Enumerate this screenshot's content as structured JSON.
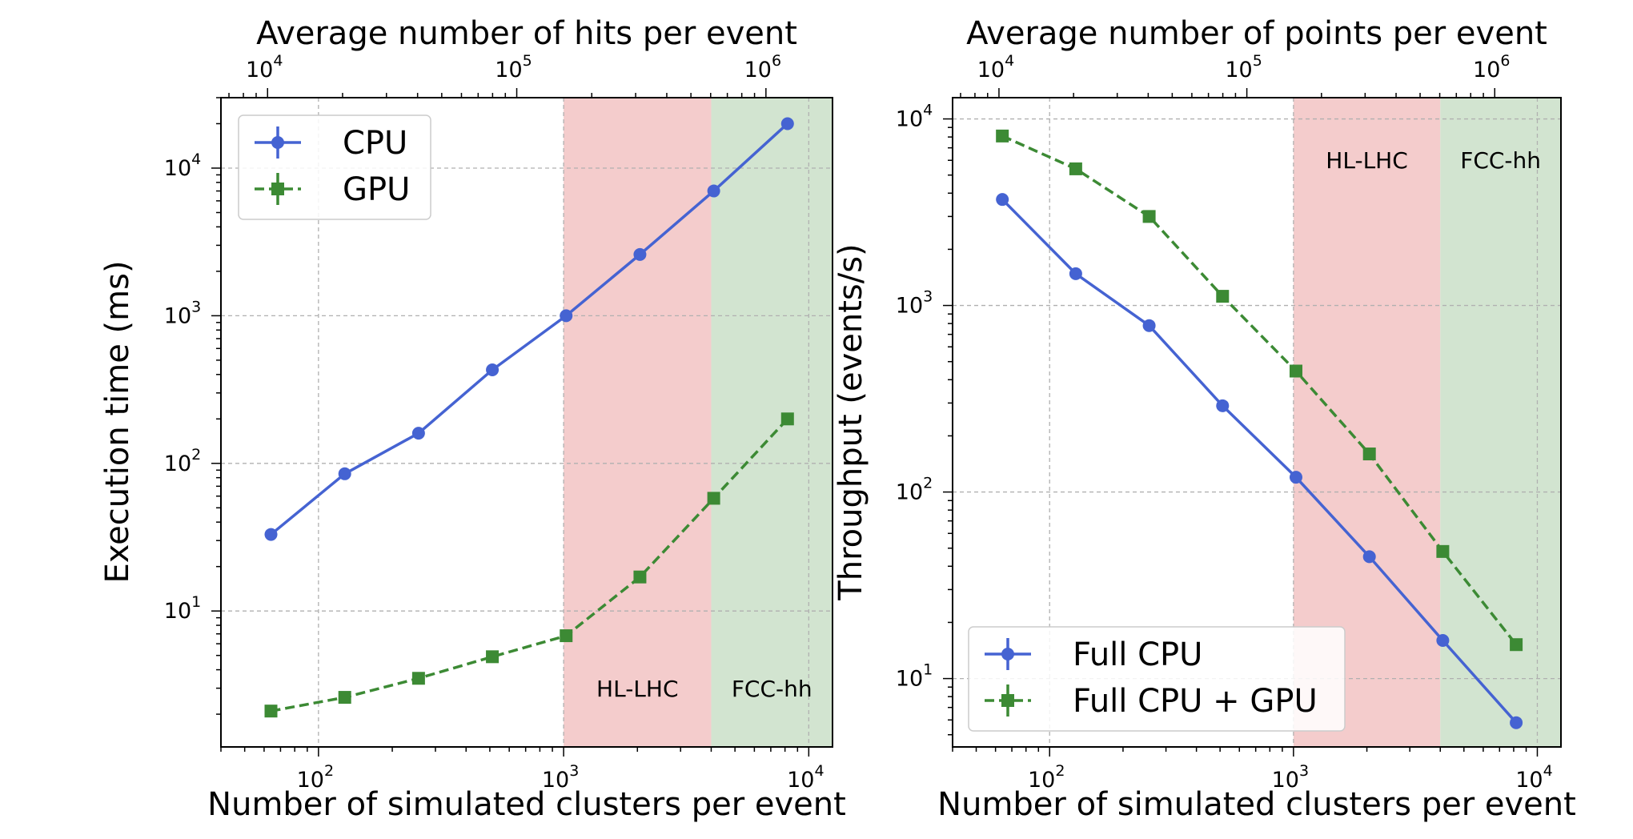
{
  "chart_data": [
    {
      "type": "line",
      "id": "left",
      "xlabel": "Number of simulated clusters per event",
      "ylabel": "Execution time (ms)",
      "top_xlabel": "Average number of hits per event",
      "xscale": "log",
      "yscale": "log",
      "xlim": [
        40,
        12500
      ],
      "ylim": [
        1.2,
        30000
      ],
      "top_xlim": [
        6500,
        1850000
      ],
      "x_ticks": [
        {
          "base": "10",
          "exp": "2",
          "value": 100
        },
        {
          "base": "10",
          "exp": "3",
          "value": 1000
        },
        {
          "base": "10",
          "exp": "4",
          "value": 10000
        }
      ],
      "y_ticks": [
        {
          "base": "10",
          "exp": "1",
          "value": 10
        },
        {
          "base": "10",
          "exp": "2",
          "value": 100
        },
        {
          "base": "10",
          "exp": "3",
          "value": 1000
        },
        {
          "base": "10",
          "exp": "4",
          "value": 10000
        }
      ],
      "top_ticks": [
        {
          "base": "10",
          "exp": "4",
          "value": 10000
        },
        {
          "base": "10",
          "exp": "5",
          "value": 100000
        },
        {
          "base": "10",
          "exp": "6",
          "value": 1000000
        }
      ],
      "grid": true,
      "legend_position": "top-left",
      "regions": [
        {
          "label": "HL-LHC",
          "from": 1000,
          "to": 4000,
          "color": "#f4cccc"
        },
        {
          "label": "FCC-hh",
          "from": 4000,
          "to": 12500,
          "color": "#d2e4d0"
        }
      ],
      "x": [
        64,
        128,
        256,
        512,
        1024,
        2048,
        4096,
        8192
      ],
      "series": [
        {
          "name": "CPU",
          "values": [
            33,
            85,
            160,
            430,
            1000,
            2600,
            7000,
            20000
          ],
          "color": "#4563d2",
          "marker": "circle",
          "dash": "solid"
        },
        {
          "name": "GPU",
          "values": [
            2.1,
            2.6,
            3.5,
            4.9,
            6.8,
            17,
            58,
            200
          ],
          "color": "#3c8a34",
          "marker": "square",
          "dash": "dashed"
        }
      ]
    },
    {
      "type": "line",
      "id": "right",
      "xlabel": "Number of simulated clusters per event",
      "ylabel": "Throughput (events/s)",
      "top_xlabel": "Average number of points per event",
      "xscale": "log",
      "yscale": "log",
      "xlim": [
        40,
        12500
      ],
      "ylim": [
        4.3,
        13000
      ],
      "top_xlim": [
        6500,
        1850000
      ],
      "x_ticks": [
        {
          "base": "10",
          "exp": "2",
          "value": 100
        },
        {
          "base": "10",
          "exp": "3",
          "value": 1000
        },
        {
          "base": "10",
          "exp": "4",
          "value": 10000
        }
      ],
      "y_ticks": [
        {
          "base": "10",
          "exp": "1",
          "value": 10
        },
        {
          "base": "10",
          "exp": "2",
          "value": 100
        },
        {
          "base": "10",
          "exp": "3",
          "value": 1000
        },
        {
          "base": "10",
          "exp": "4",
          "value": 10000
        }
      ],
      "top_ticks": [
        {
          "base": "10",
          "exp": "4",
          "value": 10000
        },
        {
          "base": "10",
          "exp": "5",
          "value": 100000
        },
        {
          "base": "10",
          "exp": "6",
          "value": 1000000
        }
      ],
      "grid": true,
      "legend_position": "bottom-left",
      "regions": [
        {
          "label": "HL-LHC",
          "from": 1000,
          "to": 4000,
          "color": "#f4cccc"
        },
        {
          "label": "FCC-hh",
          "from": 4000,
          "to": 12500,
          "color": "#d2e4d0"
        }
      ],
      "x": [
        64,
        128,
        256,
        512,
        1024,
        2048,
        4096,
        8192
      ],
      "series": [
        {
          "name": "Full CPU",
          "values": [
            3700,
            1480,
            780,
            290,
            120,
            45,
            16,
            5.8
          ],
          "color": "#4563d2",
          "marker": "circle",
          "dash": "solid"
        },
        {
          "name": "Full CPU + GPU",
          "values": [
            8100,
            5400,
            3000,
            1120,
            445,
            160,
            48,
            15.2
          ],
          "color": "#3c8a34",
          "marker": "square",
          "dash": "dashed"
        }
      ]
    }
  ]
}
